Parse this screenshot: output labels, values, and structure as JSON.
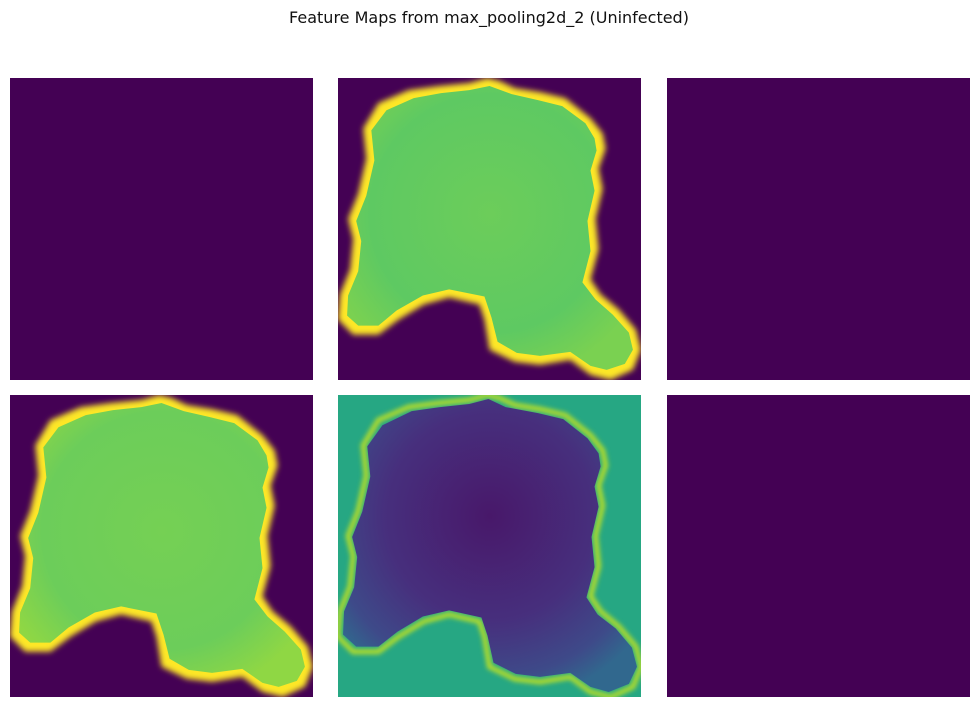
{
  "figure": {
    "title": "Feature Maps from max_pooling2d_2 (Uninfected)"
  },
  "colormap": {
    "name": "viridis",
    "low": "#440154",
    "dark": "#472f7d",
    "mid_blue": "#3b528b",
    "teal": "#26a783",
    "green": "#5ec962",
    "light_green": "#a0da39",
    "yellow": "#fde725"
  },
  "feature_maps": [
    {
      "index": 1,
      "pattern": "uniform-low"
    },
    {
      "index": 2,
      "pattern": "cell-bright-edge"
    },
    {
      "index": 3,
      "pattern": "uniform-low"
    },
    {
      "index": 4,
      "pattern": "cell-bright-edge"
    },
    {
      "index": 5,
      "pattern": "cell-inverted"
    },
    {
      "index": 6,
      "pattern": "uniform-low"
    }
  ]
}
